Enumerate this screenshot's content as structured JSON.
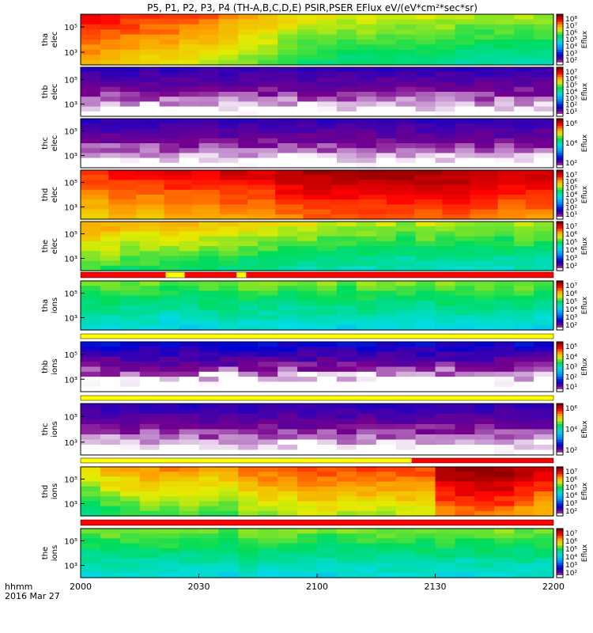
{
  "title": "P5, P1, P2, P3, P4 (TH-A,B,C,D,E) PSIR,PSER EFlux eV/(eV*cm²*sec*sr)",
  "time_label": "hhmm",
  "date_label": "2016 Mar 27",
  "chart_data": {
    "type": "heatmap",
    "x_ticks": [
      "2000",
      "2030",
      "2100",
      "2130",
      "2200"
    ],
    "x_range": [
      "20:00",
      "22:00"
    ],
    "colorbar_label": "Eflux",
    "panels": [
      {
        "id": "tha-elec",
        "ylabel": [
          "tha",
          "elec"
        ],
        "y_ticks": [
          "10⁵",
          "10³"
        ],
        "cbar_ticks": [
          "10⁸",
          "10⁷",
          "10⁶",
          "10⁵",
          "10⁴",
          "10³",
          "10²"
        ],
        "cbar_range": [
          2,
          8
        ],
        "profile": [
          7.2,
          7.1,
          7.0,
          6.9,
          6.9,
          6.8,
          6.7,
          6.5,
          6.4,
          6.3,
          6.1,
          6.0,
          6.0,
          5.9,
          5.9,
          5.9,
          5.8,
          5.8,
          5.8,
          5.7,
          5.7,
          5.7,
          5.7,
          5.7
        ]
      },
      {
        "id": "thb-elec",
        "ylabel": [
          "thb",
          "elec"
        ],
        "y_ticks": [
          "10⁵",
          "10³"
        ],
        "cbar_ticks": [
          "10⁷",
          "10⁶",
          "10⁵",
          "10⁴",
          "10³",
          "10²",
          "10¹"
        ],
        "cbar_range": [
          1,
          7
        ],
        "profile": [
          1.5,
          1.5,
          1.5,
          1.5,
          1.5,
          1.5,
          1.5,
          1.5,
          1.5,
          1.5,
          1.5,
          1.5,
          1.5,
          1.5,
          1.5,
          1.5,
          1.5,
          1.5,
          1.5,
          1.5,
          1.5,
          1.5,
          1.5,
          1.5
        ]
      },
      {
        "id": "thc-elec",
        "ylabel": [
          "thc",
          "elec"
        ],
        "y_ticks": [
          "10⁵",
          "10³"
        ],
        "cbar_ticks": [
          "10⁶",
          "10⁴",
          "10²"
        ],
        "cbar_range": [
          1,
          7
        ],
        "profile": [
          1.5,
          1.5,
          1.5,
          1.5,
          1.5,
          1.5,
          1.5,
          1.5,
          1.5,
          1.5,
          1.5,
          1.5,
          1.5,
          1.5,
          1.5,
          1.5,
          1.5,
          1.5,
          1.5,
          1.5,
          1.5,
          1.5,
          1.5,
          1.5
        ]
      },
      {
        "id": "thd-elec",
        "ylabel": [
          "thd",
          "elec"
        ],
        "y_ticks": [
          "10⁵",
          "10³"
        ],
        "cbar_ticks": [
          "10⁷",
          "10⁶",
          "10⁵",
          "10⁴",
          "10³",
          "10²",
          "10¹"
        ],
        "cbar_range": [
          1,
          7
        ],
        "profile": [
          6.0,
          6.1,
          6.1,
          6.2,
          6.2,
          6.3,
          6.3,
          6.5,
          6.6,
          6.6,
          6.6,
          6.6,
          6.6,
          6.6,
          6.5,
          6.4,
          6.4
        ]
      },
      {
        "id": "the-elec",
        "ylabel": [
          "the",
          "elec"
        ],
        "y_ticks": [
          "10⁵",
          "10³"
        ],
        "cbar_ticks": [
          "10⁷",
          "10⁶",
          "10⁵",
          "10⁴",
          "10³",
          "10²"
        ],
        "cbar_range": [
          2,
          7
        ],
        "profile": [
          5.6,
          5.6,
          5.5,
          5.5,
          5.5,
          5.5,
          5.4,
          5.4,
          5.3,
          5.3,
          5.2,
          5.2,
          5.1,
          5.1,
          5.1,
          5.1,
          5.0,
          5.1,
          5.0,
          5.0,
          5.0,
          5.0,
          5.1,
          5.0
        ]
      },
      {
        "id": "tha-ions",
        "ylabel": [
          "tha",
          "ions"
        ],
        "y_ticks": [
          "10⁵",
          "10³"
        ],
        "cbar_ticks": [
          "10⁷",
          "10⁶",
          "10⁵",
          "10⁴",
          "10³",
          "10²"
        ],
        "cbar_range": [
          2,
          7
        ],
        "profile": [
          4.9,
          4.9,
          4.9,
          4.9,
          4.8,
          4.8,
          4.9,
          4.9,
          4.9,
          4.9,
          4.8,
          4.9,
          4.9,
          4.8,
          4.9,
          4.9,
          4.9,
          4.8,
          4.9,
          4.9,
          4.9,
          4.9,
          4.9,
          4.8
        ]
      },
      {
        "id": "thb-ions",
        "ylabel": [
          "thb",
          "ions"
        ],
        "y_ticks": [
          "10⁵",
          "10³"
        ],
        "cbar_ticks": [
          "10⁵",
          "10⁴",
          "10³",
          "10²",
          "10¹"
        ],
        "cbar_range": [
          1,
          5
        ],
        "profile": [
          1.4,
          1.4,
          1.4,
          1.4,
          1.4,
          1.4,
          1.4,
          1.4,
          1.4,
          1.4,
          1.4,
          1.4,
          1.4,
          1.4,
          1.4,
          1.4,
          1.4,
          1.4,
          1.4,
          1.4,
          1.4,
          1.4,
          1.4,
          1.4
        ]
      },
      {
        "id": "thc-ions",
        "ylabel": [
          "thc",
          "ions"
        ],
        "y_ticks": [
          "10⁵",
          "10³"
        ],
        "cbar_ticks": [
          "10⁶",
          "10⁴",
          "10²"
        ],
        "cbar_range": [
          1,
          7
        ],
        "profile": [
          1.5,
          1.5,
          1.5,
          1.5,
          1.5,
          1.5,
          1.5,
          1.5,
          1.5,
          1.5,
          1.5,
          1.5,
          1.5,
          1.5,
          1.5,
          1.5,
          1.5,
          1.5,
          1.5,
          1.5,
          1.5,
          1.5,
          1.5,
          1.5
        ]
      },
      {
        "id": "thd-ions",
        "ylabel": [
          "thd",
          "ions"
        ],
        "y_ticks": [
          "10⁵",
          "10³"
        ],
        "cbar_ticks": [
          "10⁷",
          "10⁶",
          "10⁵",
          "10⁴",
          "10³",
          "10²"
        ],
        "cbar_range": [
          2,
          7
        ],
        "profile": [
          5.3,
          5.5,
          5.6,
          5.7,
          5.7,
          5.7,
          5.6,
          5.6,
          5.8,
          5.9,
          5.9,
          6.0,
          6.0,
          6.0,
          6.0,
          6.0,
          6.0,
          6.0,
          6.6,
          6.7,
          6.8,
          6.7,
          6.5,
          6.4
        ]
      },
      {
        "id": "the-ions",
        "ylabel": [
          "the",
          "ions"
        ],
        "y_ticks": [
          "10⁵",
          "10³"
        ],
        "cbar_ticks": [
          "10⁷",
          "10⁶",
          "10⁵",
          "10⁴",
          "10³",
          "10²"
        ],
        "cbar_range": [
          2,
          7
        ],
        "profile": [
          4.9,
          4.9,
          4.9,
          4.9,
          4.9,
          4.9,
          4.9,
          4.8,
          4.9,
          4.9,
          4.9,
          4.9,
          4.8,
          4.9,
          4.9,
          4.9,
          4.9,
          4.9,
          4.9,
          4.8,
          4.9,
          4.9,
          4.9,
          4.9
        ]
      }
    ],
    "flag_bars": [
      {
        "id": "flag-the-elec",
        "segments": [
          [
            "red",
            0.0,
            0.18
          ],
          [
            "yellow",
            0.18,
            0.22
          ],
          [
            "red",
            0.22,
            0.33
          ],
          [
            "yellow",
            0.33,
            0.35
          ],
          [
            "red",
            0.35,
            1.0
          ]
        ]
      },
      {
        "id": "flag-tha-ions",
        "segments": [
          [
            "yellow",
            0.0,
            1.0
          ]
        ]
      },
      {
        "id": "flag-thb-ions",
        "segments": [
          [
            "yellow",
            0.0,
            1.0
          ]
        ]
      },
      {
        "id": "flag-thc-ions",
        "segments": [
          [
            "yellow",
            0.0,
            0.7
          ],
          [
            "red",
            0.7,
            1.0
          ]
        ]
      },
      {
        "id": "flag-thd-ions",
        "segments": [
          [
            "red",
            0.0,
            1.0
          ]
        ]
      }
    ]
  }
}
